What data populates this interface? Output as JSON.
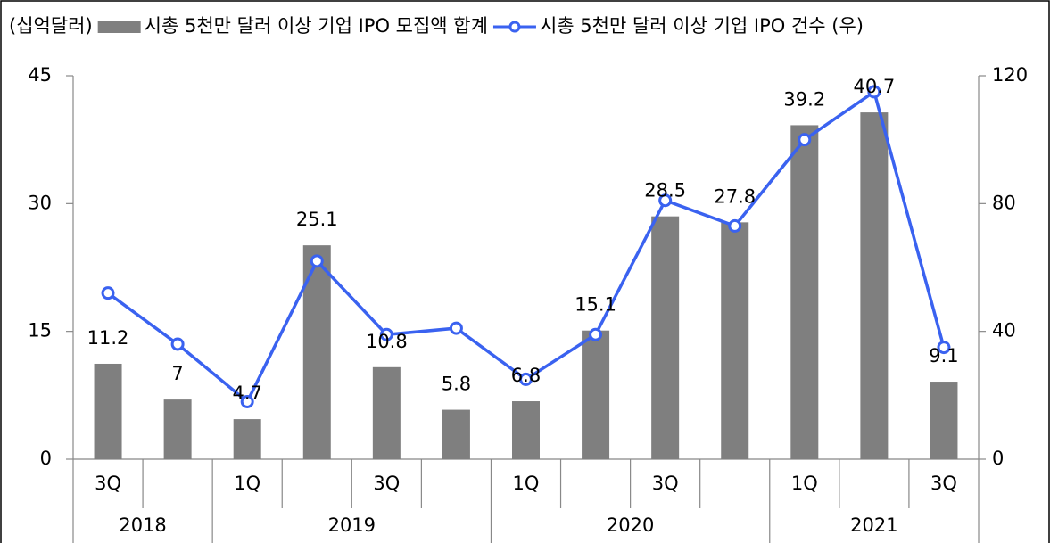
{
  "chart_data": {
    "type": "bar_line",
    "y_label": "(십억달러)",
    "categories": [
      "3Q",
      null,
      "1Q",
      null,
      "3Q",
      null,
      "1Q",
      null,
      "3Q",
      null,
      "1Q",
      null,
      "3Q"
    ],
    "category_groups": [
      {
        "label": "2018",
        "size": 2
      },
      {
        "label": "2019",
        "size": 4
      },
      {
        "label": "2020",
        "size": 4
      },
      {
        "label": "2021",
        "size": 3
      }
    ],
    "series": [
      {
        "name": "시총 5천만 달러 이상 기업 IPO 모집액 합계",
        "type": "bar",
        "color": "#7f7f7f",
        "values": [
          11.2,
          7,
          4.7,
          25.1,
          10.8,
          5.8,
          6.8,
          15.1,
          28.5,
          27.8,
          39.2,
          40.7,
          9.1
        ]
      },
      {
        "name": "시총 5천만 달러 이상 기업 IPO 건수 (우)",
        "type": "line",
        "axis": "y2",
        "color": "#3a62f0",
        "values": [
          52,
          36,
          18,
          62,
          39,
          41,
          25,
          39,
          81,
          73,
          100,
          115,
          35
        ]
      }
    ],
    "ylim": [
      0,
      45
    ],
    "yticks": [
      0,
      15,
      30,
      45
    ],
    "y2lim": [
      0,
      120
    ],
    "y2ticks": [
      0,
      40,
      80,
      120
    ]
  }
}
